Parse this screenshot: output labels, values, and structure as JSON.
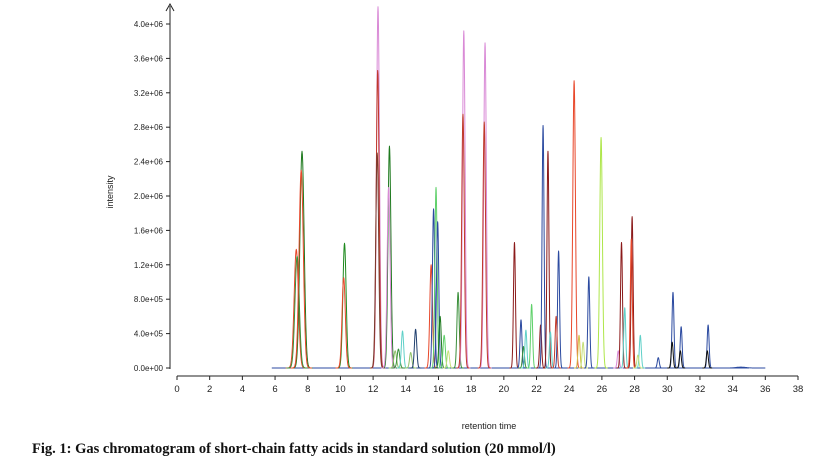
{
  "caption": "Fig. 1: Gas chromatogram of short-chain fatty acids in standard solution (20 mmol/l)",
  "chart_data": {
    "type": "line",
    "title": "",
    "xlabel": "retention time",
    "ylabel": "intensity",
    "xlim": [
      0,
      38
    ],
    "ylim": [
      0,
      4200000
    ],
    "x_ticks": [
      "0",
      "2",
      "4",
      "6",
      "8",
      "10",
      "12",
      "14",
      "16",
      "18",
      "20",
      "22",
      "24",
      "26",
      "28",
      "30",
      "32",
      "34",
      "36",
      "38"
    ],
    "y_ticks": [
      "0.0e+00",
      "4.0e+05",
      "8.0e+05",
      "1.2e+06",
      "1.6e+06",
      "2.0e+06",
      "2.4e+06",
      "2.8e+06",
      "3.2e+06",
      "3.6e+06",
      "4.0e+06"
    ],
    "grid": false,
    "legend": "none",
    "peaks": [
      {
        "x": 7.3,
        "y": 1380000,
        "width": 0.13,
        "color": "#e8472a"
      },
      {
        "x": 7.35,
        "y": 1300000,
        "width": 0.13,
        "color": "#3a8f3a"
      },
      {
        "x": 7.65,
        "y": 2520000,
        "width": 0.13,
        "color": "#1f7a1f"
      },
      {
        "x": 7.6,
        "y": 2300000,
        "width": 0.13,
        "color": "#e8472a"
      },
      {
        "x": 10.25,
        "y": 1450000,
        "width": 0.1,
        "color": "#1f8a1f"
      },
      {
        "x": 10.2,
        "y": 1050000,
        "width": 0.1,
        "color": "#e8472a"
      },
      {
        "x": 12.3,
        "y": 4200000,
        "width": 0.09,
        "color": "#d98ad6"
      },
      {
        "x": 12.28,
        "y": 3460000,
        "width": 0.09,
        "color": "#c0392b"
      },
      {
        "x": 12.25,
        "y": 2500000,
        "width": 0.09,
        "color": "#7a3b2e"
      },
      {
        "x": 13.0,
        "y": 2580000,
        "width": 0.09,
        "color": "#1f7a1f"
      },
      {
        "x": 12.95,
        "y": 2100000,
        "width": 0.09,
        "color": "#d98ad6"
      },
      {
        "x": 13.35,
        "y": 200000,
        "width": 0.08,
        "color": "#90c26a"
      },
      {
        "x": 13.55,
        "y": 220000,
        "width": 0.08,
        "color": "#3a8f3a"
      },
      {
        "x": 13.8,
        "y": 430000,
        "width": 0.07,
        "color": "#5fd0c8"
      },
      {
        "x": 14.3,
        "y": 180000,
        "width": 0.07,
        "color": "#90c26a"
      },
      {
        "x": 14.6,
        "y": 450000,
        "width": 0.07,
        "color": "#1f3f6e"
      },
      {
        "x": 15.55,
        "y": 1200000,
        "width": 0.08,
        "color": "#e8472a"
      },
      {
        "x": 15.7,
        "y": 1850000,
        "width": 0.07,
        "color": "#2b4aa0"
      },
      {
        "x": 15.85,
        "y": 2100000,
        "width": 0.07,
        "color": "#5fd06a"
      },
      {
        "x": 15.95,
        "y": 1700000,
        "width": 0.07,
        "color": "#2b4aa0"
      },
      {
        "x": 16.1,
        "y": 600000,
        "width": 0.07,
        "color": "#1f7a1f"
      },
      {
        "x": 16.35,
        "y": 380000,
        "width": 0.07,
        "color": "#5fd06a"
      },
      {
        "x": 16.6,
        "y": 200000,
        "width": 0.07,
        "color": "#c6e07a"
      },
      {
        "x": 17.2,
        "y": 880000,
        "width": 0.07,
        "color": "#3a8f3a"
      },
      {
        "x": 17.55,
        "y": 3920000,
        "width": 0.08,
        "color": "#d98ad6"
      },
      {
        "x": 17.5,
        "y": 2950000,
        "width": 0.08,
        "color": "#c0392b"
      },
      {
        "x": 18.85,
        "y": 3780000,
        "width": 0.08,
        "color": "#d98ad6"
      },
      {
        "x": 18.8,
        "y": 2860000,
        "width": 0.08,
        "color": "#c0392b"
      },
      {
        "x": 20.65,
        "y": 1460000,
        "width": 0.06,
        "color": "#8b1a1a"
      },
      {
        "x": 21.05,
        "y": 560000,
        "width": 0.06,
        "color": "#2b4aa0"
      },
      {
        "x": 21.2,
        "y": 250000,
        "width": 0.06,
        "color": "#3a8f3a"
      },
      {
        "x": 21.35,
        "y": 440000,
        "width": 0.06,
        "color": "#5fd0c8"
      },
      {
        "x": 21.7,
        "y": 740000,
        "width": 0.06,
        "color": "#5fd06a"
      },
      {
        "x": 22.25,
        "y": 500000,
        "width": 0.06,
        "color": "#8b1a1a"
      },
      {
        "x": 22.4,
        "y": 2820000,
        "width": 0.06,
        "color": "#2b4aa0"
      },
      {
        "x": 22.7,
        "y": 2520000,
        "width": 0.06,
        "color": "#8b1a1a"
      },
      {
        "x": 22.85,
        "y": 420000,
        "width": 0.06,
        "color": "#5fd0c8"
      },
      {
        "x": 23.35,
        "y": 1360000,
        "width": 0.06,
        "color": "#2b4aa0"
      },
      {
        "x": 23.2,
        "y": 600000,
        "width": 0.06,
        "color": "#c0392b"
      },
      {
        "x": 24.3,
        "y": 3340000,
        "width": 0.08,
        "color": "#e8472a"
      },
      {
        "x": 24.6,
        "y": 380000,
        "width": 0.06,
        "color": "#d4c04a"
      },
      {
        "x": 24.85,
        "y": 300000,
        "width": 0.06,
        "color": "#c6e07a"
      },
      {
        "x": 25.2,
        "y": 1060000,
        "width": 0.06,
        "color": "#2b4aa0"
      },
      {
        "x": 25.95,
        "y": 2680000,
        "width": 0.08,
        "color": "#aee64a"
      },
      {
        "x": 27.0,
        "y": 200000,
        "width": 0.06,
        "color": "#d98ad6"
      },
      {
        "x": 27.2,
        "y": 1460000,
        "width": 0.06,
        "color": "#8b1a1a"
      },
      {
        "x": 27.4,
        "y": 700000,
        "width": 0.06,
        "color": "#5fd0c8"
      },
      {
        "x": 27.85,
        "y": 1760000,
        "width": 0.06,
        "color": "#8b1a1a"
      },
      {
        "x": 27.8,
        "y": 1500000,
        "width": 0.06,
        "color": "#e8472a"
      },
      {
        "x": 28.35,
        "y": 380000,
        "width": 0.06,
        "color": "#5fd0c8"
      },
      {
        "x": 28.2,
        "y": 150000,
        "width": 0.06,
        "color": "#c6e07a"
      },
      {
        "x": 29.45,
        "y": 120000,
        "width": 0.06,
        "color": "#2b4aa0"
      },
      {
        "x": 30.35,
        "y": 880000,
        "width": 0.06,
        "color": "#2b4aa0"
      },
      {
        "x": 30.3,
        "y": 300000,
        "width": 0.06,
        "color": "#111111"
      },
      {
        "x": 30.85,
        "y": 480000,
        "width": 0.06,
        "color": "#2b4aa0"
      },
      {
        "x": 30.8,
        "y": 200000,
        "width": 0.06,
        "color": "#111111"
      },
      {
        "x": 32.5,
        "y": 500000,
        "width": 0.06,
        "color": "#2b4aa0"
      },
      {
        "x": 32.45,
        "y": 200000,
        "width": 0.06,
        "color": "#111111"
      },
      {
        "x": 34.5,
        "y": 10000,
        "width": 0.3,
        "color": "#2b4aa0"
      }
    ]
  }
}
